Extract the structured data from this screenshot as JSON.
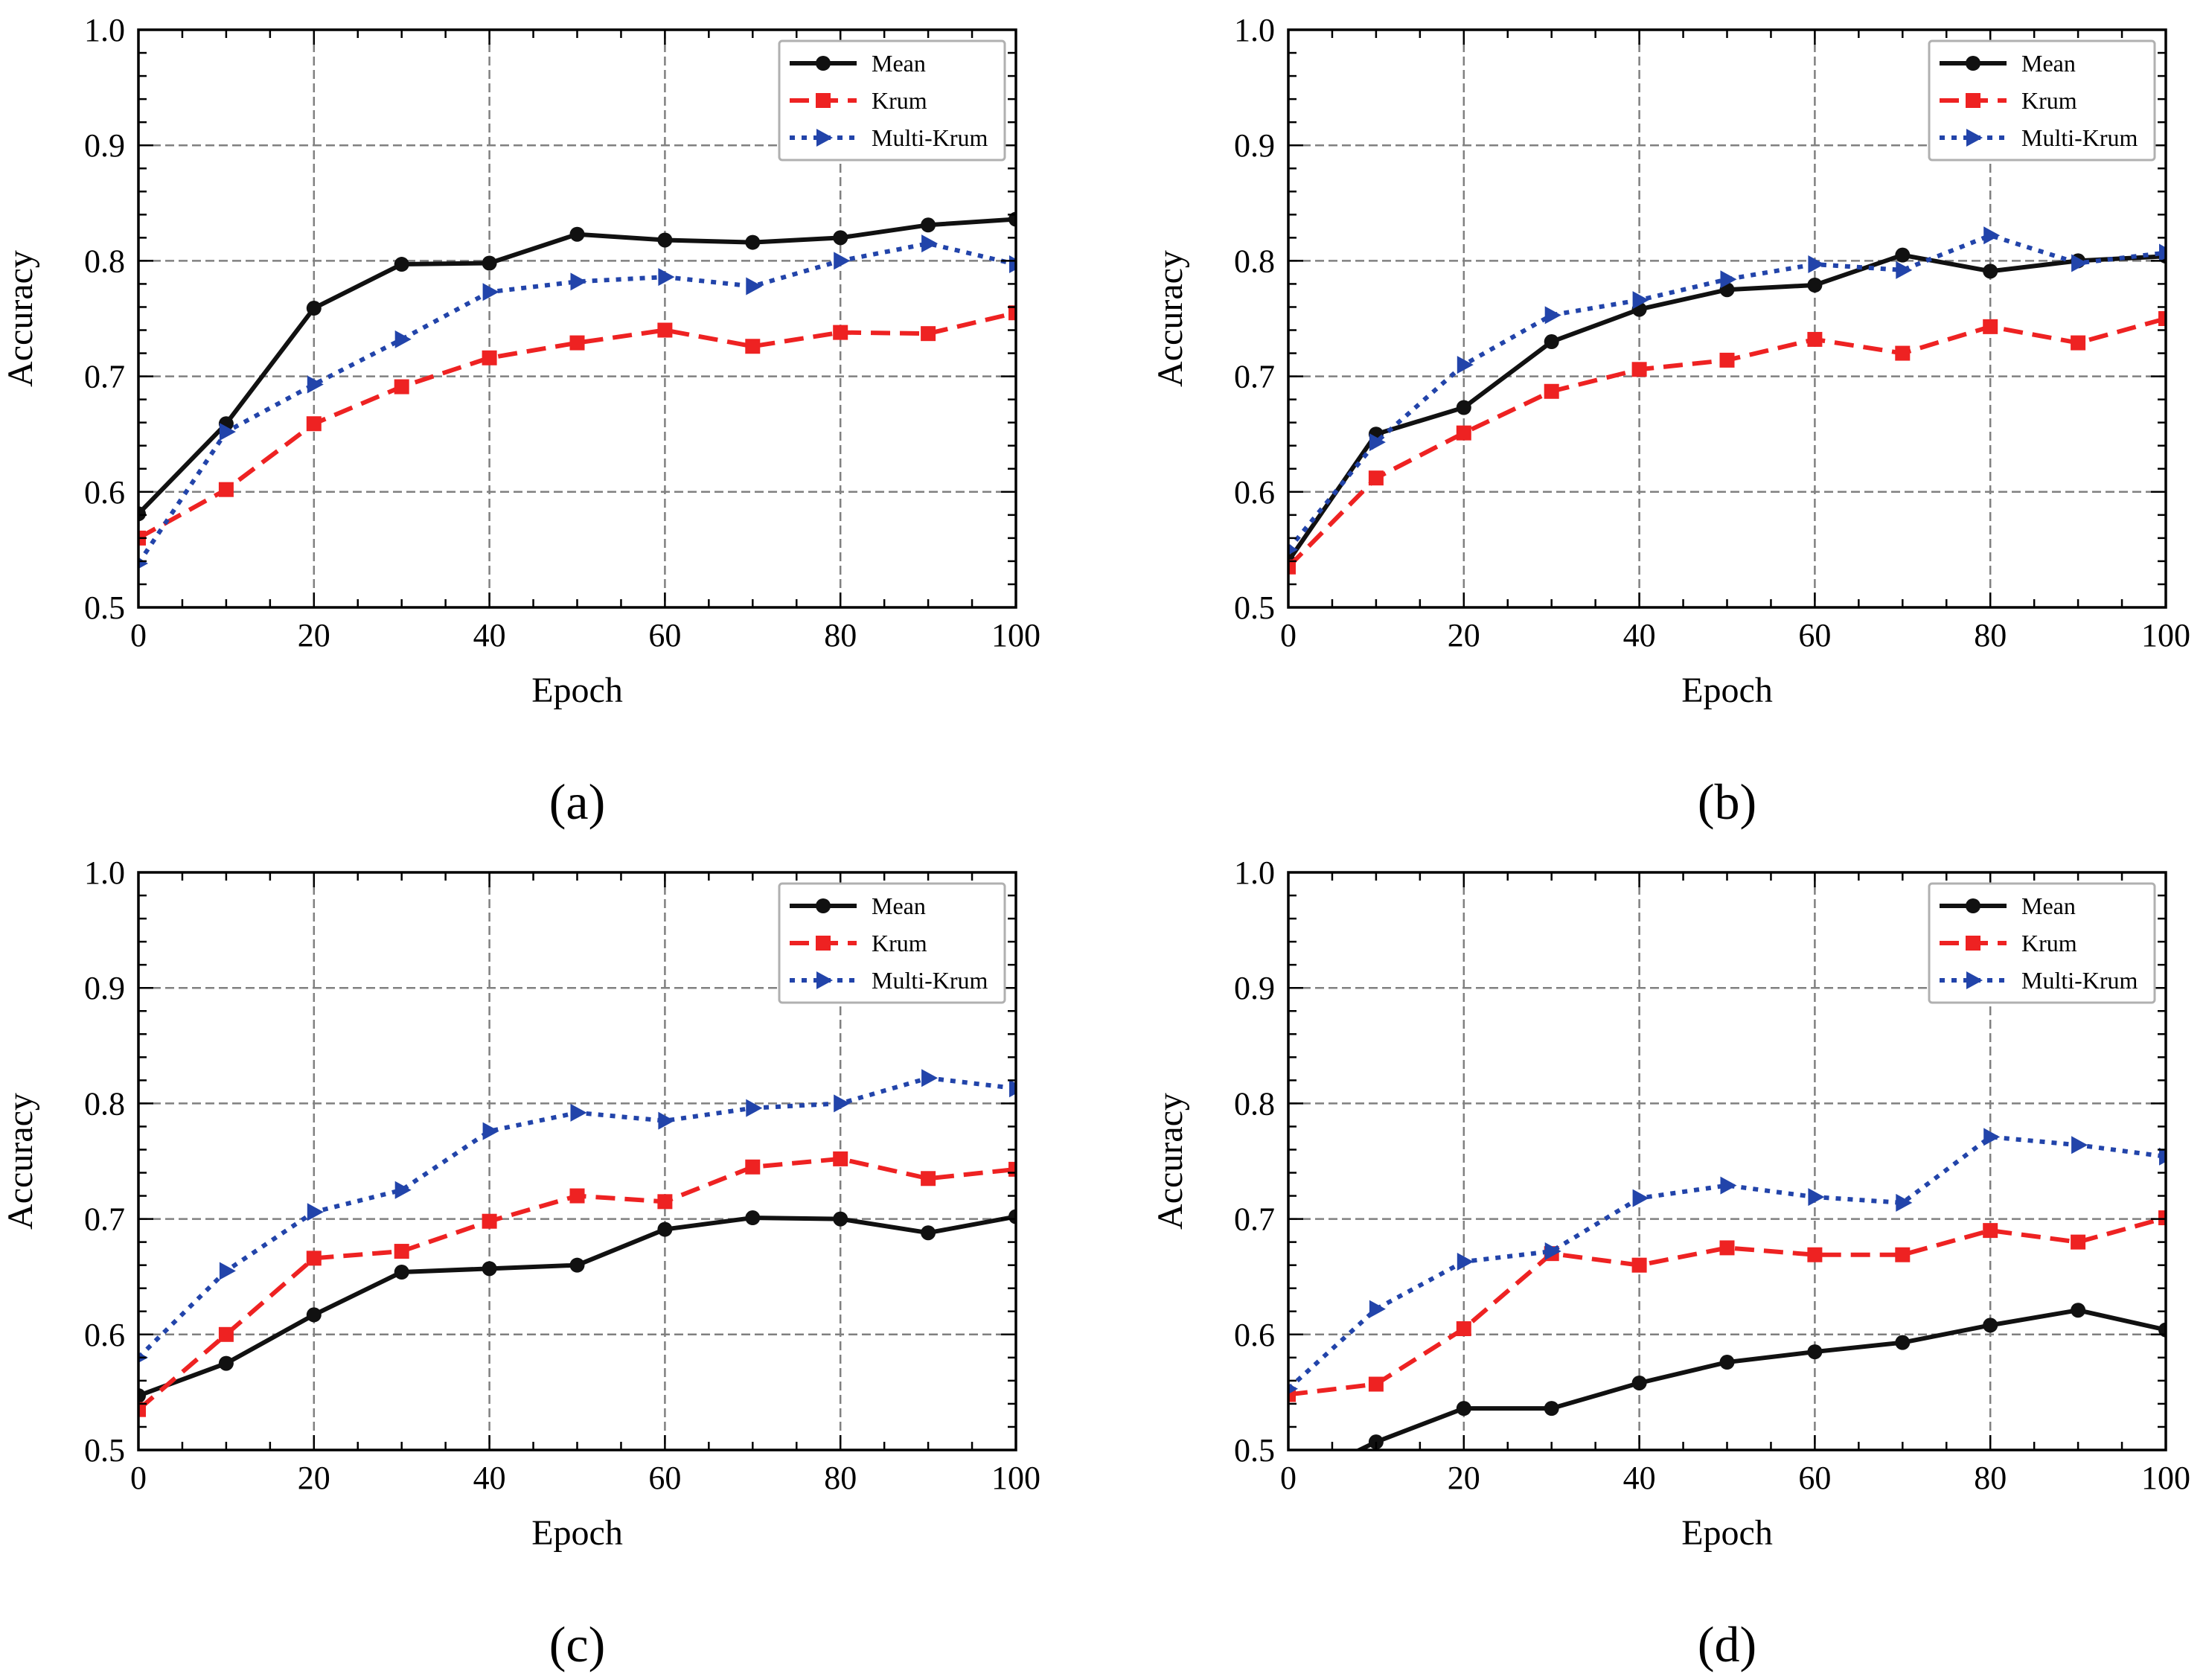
{
  "chart_data": [
    {
      "type": "line",
      "panel": "(a)",
      "xlabel": "Epoch",
      "ylabel": "Accuracy",
      "xlim": [
        0,
        100
      ],
      "ylim": [
        0.5,
        1.0
      ],
      "xticks": [
        "0",
        "20",
        "40",
        "60",
        "80",
        "100"
      ],
      "yticks": [
        "0.5",
        "0.6",
        "0.7",
        "0.8",
        "0.9",
        "1.0"
      ],
      "grid": true,
      "legend_position": "top-right",
      "x": [
        0,
        10,
        20,
        30,
        40,
        50,
        60,
        70,
        80,
        90,
        100
      ],
      "series": [
        {
          "name": "Mean",
          "color": "#111111",
          "marker": "circle",
          "linestyle": "solid",
          "values": [
            0.581,
            0.659,
            0.759,
            0.797,
            0.798,
            0.823,
            0.818,
            0.816,
            0.82,
            0.831,
            0.836
          ]
        },
        {
          "name": "Krum",
          "color": "#ee2222",
          "marker": "square",
          "linestyle": "dashed",
          "values": [
            0.56,
            0.602,
            0.659,
            0.691,
            0.716,
            0.729,
            0.74,
            0.726,
            0.738,
            0.737,
            0.755
          ]
        },
        {
          "name": "Multi-Krum",
          "color": "#2244aa",
          "marker": "triangle-right",
          "linestyle": "dotted",
          "values": [
            0.538,
            0.652,
            0.693,
            0.732,
            0.773,
            0.782,
            0.786,
            0.778,
            0.8,
            0.815,
            0.797
          ]
        }
      ]
    },
    {
      "type": "line",
      "panel": "(b)",
      "xlabel": "Epoch",
      "ylabel": "Accuracy",
      "xlim": [
        0,
        100
      ],
      "ylim": [
        0.5,
        1.0
      ],
      "xticks": [
        "0",
        "20",
        "40",
        "60",
        "80",
        "100"
      ],
      "yticks": [
        "0.5",
        "0.6",
        "0.7",
        "0.8",
        "0.9",
        "1.0"
      ],
      "grid": true,
      "legend_position": "top-right",
      "x": [
        0,
        10,
        20,
        30,
        40,
        50,
        60,
        70,
        80,
        90,
        100
      ],
      "series": [
        {
          "name": "Mean",
          "color": "#111111",
          "marker": "circle",
          "linestyle": "solid",
          "values": [
            0.54,
            0.65,
            0.673,
            0.73,
            0.758,
            0.775,
            0.779,
            0.805,
            0.791,
            0.8,
            0.804
          ]
        },
        {
          "name": "Krum",
          "color": "#ee2222",
          "marker": "square",
          "linestyle": "dashed",
          "values": [
            0.535,
            0.612,
            0.651,
            0.687,
            0.706,
            0.714,
            0.732,
            0.72,
            0.743,
            0.729,
            0.75
          ]
        },
        {
          "name": "Multi-Krum",
          "color": "#2244aa",
          "marker": "triangle-right",
          "linestyle": "dotted",
          "values": [
            0.55,
            0.643,
            0.71,
            0.753,
            0.766,
            0.784,
            0.797,
            0.792,
            0.822,
            0.798,
            0.807
          ]
        }
      ]
    },
    {
      "type": "line",
      "panel": "(c)",
      "xlabel": "Epoch",
      "ylabel": "Accuracy",
      "xlim": [
        0,
        100
      ],
      "ylim": [
        0.5,
        1.0
      ],
      "xticks": [
        "0",
        "20",
        "40",
        "60",
        "80",
        "100"
      ],
      "yticks": [
        "0.5",
        "0.6",
        "0.7",
        "0.8",
        "0.9",
        "1.0"
      ],
      "grid": true,
      "legend_position": "top-right",
      "x": [
        0,
        10,
        20,
        30,
        40,
        50,
        60,
        70,
        80,
        90,
        100
      ],
      "series": [
        {
          "name": "Mean",
          "color": "#111111",
          "marker": "circle",
          "linestyle": "solid",
          "values": [
            0.547,
            0.575,
            0.617,
            0.654,
            0.657,
            0.66,
            0.691,
            0.701,
            0.7,
            0.688,
            0.702
          ]
        },
        {
          "name": "Krum",
          "color": "#ee2222",
          "marker": "square",
          "linestyle": "dashed",
          "values": [
            0.535,
            0.6,
            0.666,
            0.672,
            0.698,
            0.72,
            0.715,
            0.745,
            0.752,
            0.735,
            0.743
          ]
        },
        {
          "name": "Multi-Krum",
          "color": "#2244aa",
          "marker": "triangle-right",
          "linestyle": "dotted",
          "values": [
            0.58,
            0.655,
            0.706,
            0.725,
            0.776,
            0.792,
            0.785,
            0.796,
            0.8,
            0.822,
            0.813
          ]
        }
      ]
    },
    {
      "type": "line",
      "panel": "(d)",
      "xlabel": "Epoch",
      "ylabel": "Accuracy",
      "xlim": [
        0,
        100
      ],
      "ylim": [
        0.5,
        1.0
      ],
      "xticks": [
        "0",
        "20",
        "40",
        "60",
        "80",
        "100"
      ],
      "yticks": [
        "0.5",
        "0.6",
        "0.7",
        "0.8",
        "0.9",
        "1.0"
      ],
      "grid": true,
      "legend_position": "top-right",
      "x": [
        0,
        10,
        20,
        30,
        40,
        50,
        60,
        70,
        80,
        90,
        100
      ],
      "series": [
        {
          "name": "Mean",
          "color": "#111111",
          "marker": "circle",
          "linestyle": "solid",
          "values": [
            0.47,
            0.507,
            0.536,
            0.536,
            0.558,
            0.576,
            0.585,
            0.593,
            0.608,
            0.621,
            0.604
          ]
        },
        {
          "name": "Krum",
          "color": "#ee2222",
          "marker": "square",
          "linestyle": "dashed",
          "values": [
            0.548,
            0.557,
            0.605,
            0.67,
            0.66,
            0.675,
            0.669,
            0.669,
            0.69,
            0.68,
            0.701
          ]
        },
        {
          "name": "Multi-Krum",
          "color": "#2244aa",
          "marker": "triangle-right",
          "linestyle": "dotted",
          "values": [
            0.553,
            0.622,
            0.663,
            0.672,
            0.718,
            0.729,
            0.719,
            0.714,
            0.771,
            0.764,
            0.754
          ]
        }
      ]
    }
  ]
}
